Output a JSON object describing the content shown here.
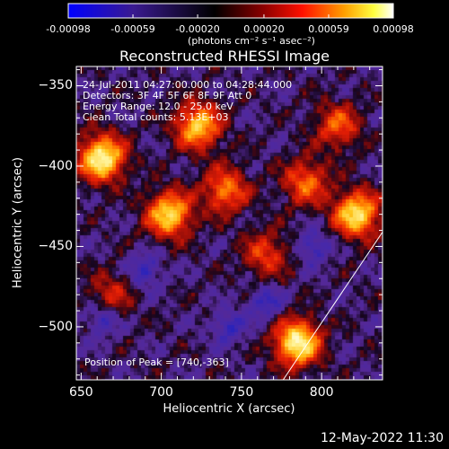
{
  "colorbar": {
    "ticks": [
      "-0.00098",
      "-0.00059",
      "-0.00020",
      "0.00020",
      "0.00059",
      "0.00098"
    ],
    "tick_values": [
      -0.00098,
      -0.00059,
      -0.0002,
      0.0002,
      0.00059,
      0.00098
    ],
    "units": "(photons cm⁻² s⁻¹ asec⁻²)",
    "colors": [
      "#0000ff",
      "#4b0082",
      "#000000",
      "#8b0000",
      "#ff0000",
      "#ffa500",
      "#ffff00",
      "#ffffff"
    ]
  },
  "chart_data": {
    "type": "heatmap",
    "title": "Reconstructed RHESSI Image",
    "xlabel": "Heliocentric X (arcsec)",
    "ylabel": "Heliocentric Y (arcsec)",
    "xlim": [
      647,
      838
    ],
    "ylim": [
      -533,
      -338
    ],
    "xticks": [
      650,
      700,
      750,
      800
    ],
    "xtick_labels": [
      "650",
      "700",
      "750",
      "800"
    ],
    "yticks": [
      -350,
      -400,
      -450,
      -500
    ],
    "ytick_labels": [
      "−350",
      "−400",
      "−450",
      "−500"
    ],
    "peak": [
      740,
      -363
    ],
    "limb_line": [
      [
        776,
        -533
      ],
      [
        838,
        -441
      ]
    ],
    "sources": [
      {
        "x": 663,
        "y": -395,
        "amp": 1.0
      },
      {
        "x": 723,
        "y": -375,
        "amp": 0.8
      },
      {
        "x": 705,
        "y": -430,
        "amp": 0.85
      },
      {
        "x": 740,
        "y": -415,
        "amp": 0.6
      },
      {
        "x": 790,
        "y": -410,
        "amp": 0.55
      },
      {
        "x": 822,
        "y": -430,
        "amp": 0.9
      },
      {
        "x": 785,
        "y": -510,
        "amp": 1.0
      },
      {
        "x": 765,
        "y": -455,
        "amp": 0.45
      },
      {
        "x": 668,
        "y": -480,
        "amp": 0.35
      },
      {
        "x": 810,
        "y": -375,
        "amp": 0.5
      }
    ],
    "annotations": {
      "time_range": "24-Jul-2011 04:27:00.000 to 04:28:44.000",
      "detectors": "Detectors: 3F 4F 5F 6F 8F 9F  Att 0",
      "energy": "Energy Range: 12.0 - 25.0 keV",
      "clean": "Clean    Total counts: 5.13E+03",
      "peak_label": "Position of Peak = [740,-363]"
    }
  },
  "timestamp": "12-May-2022 11:30"
}
